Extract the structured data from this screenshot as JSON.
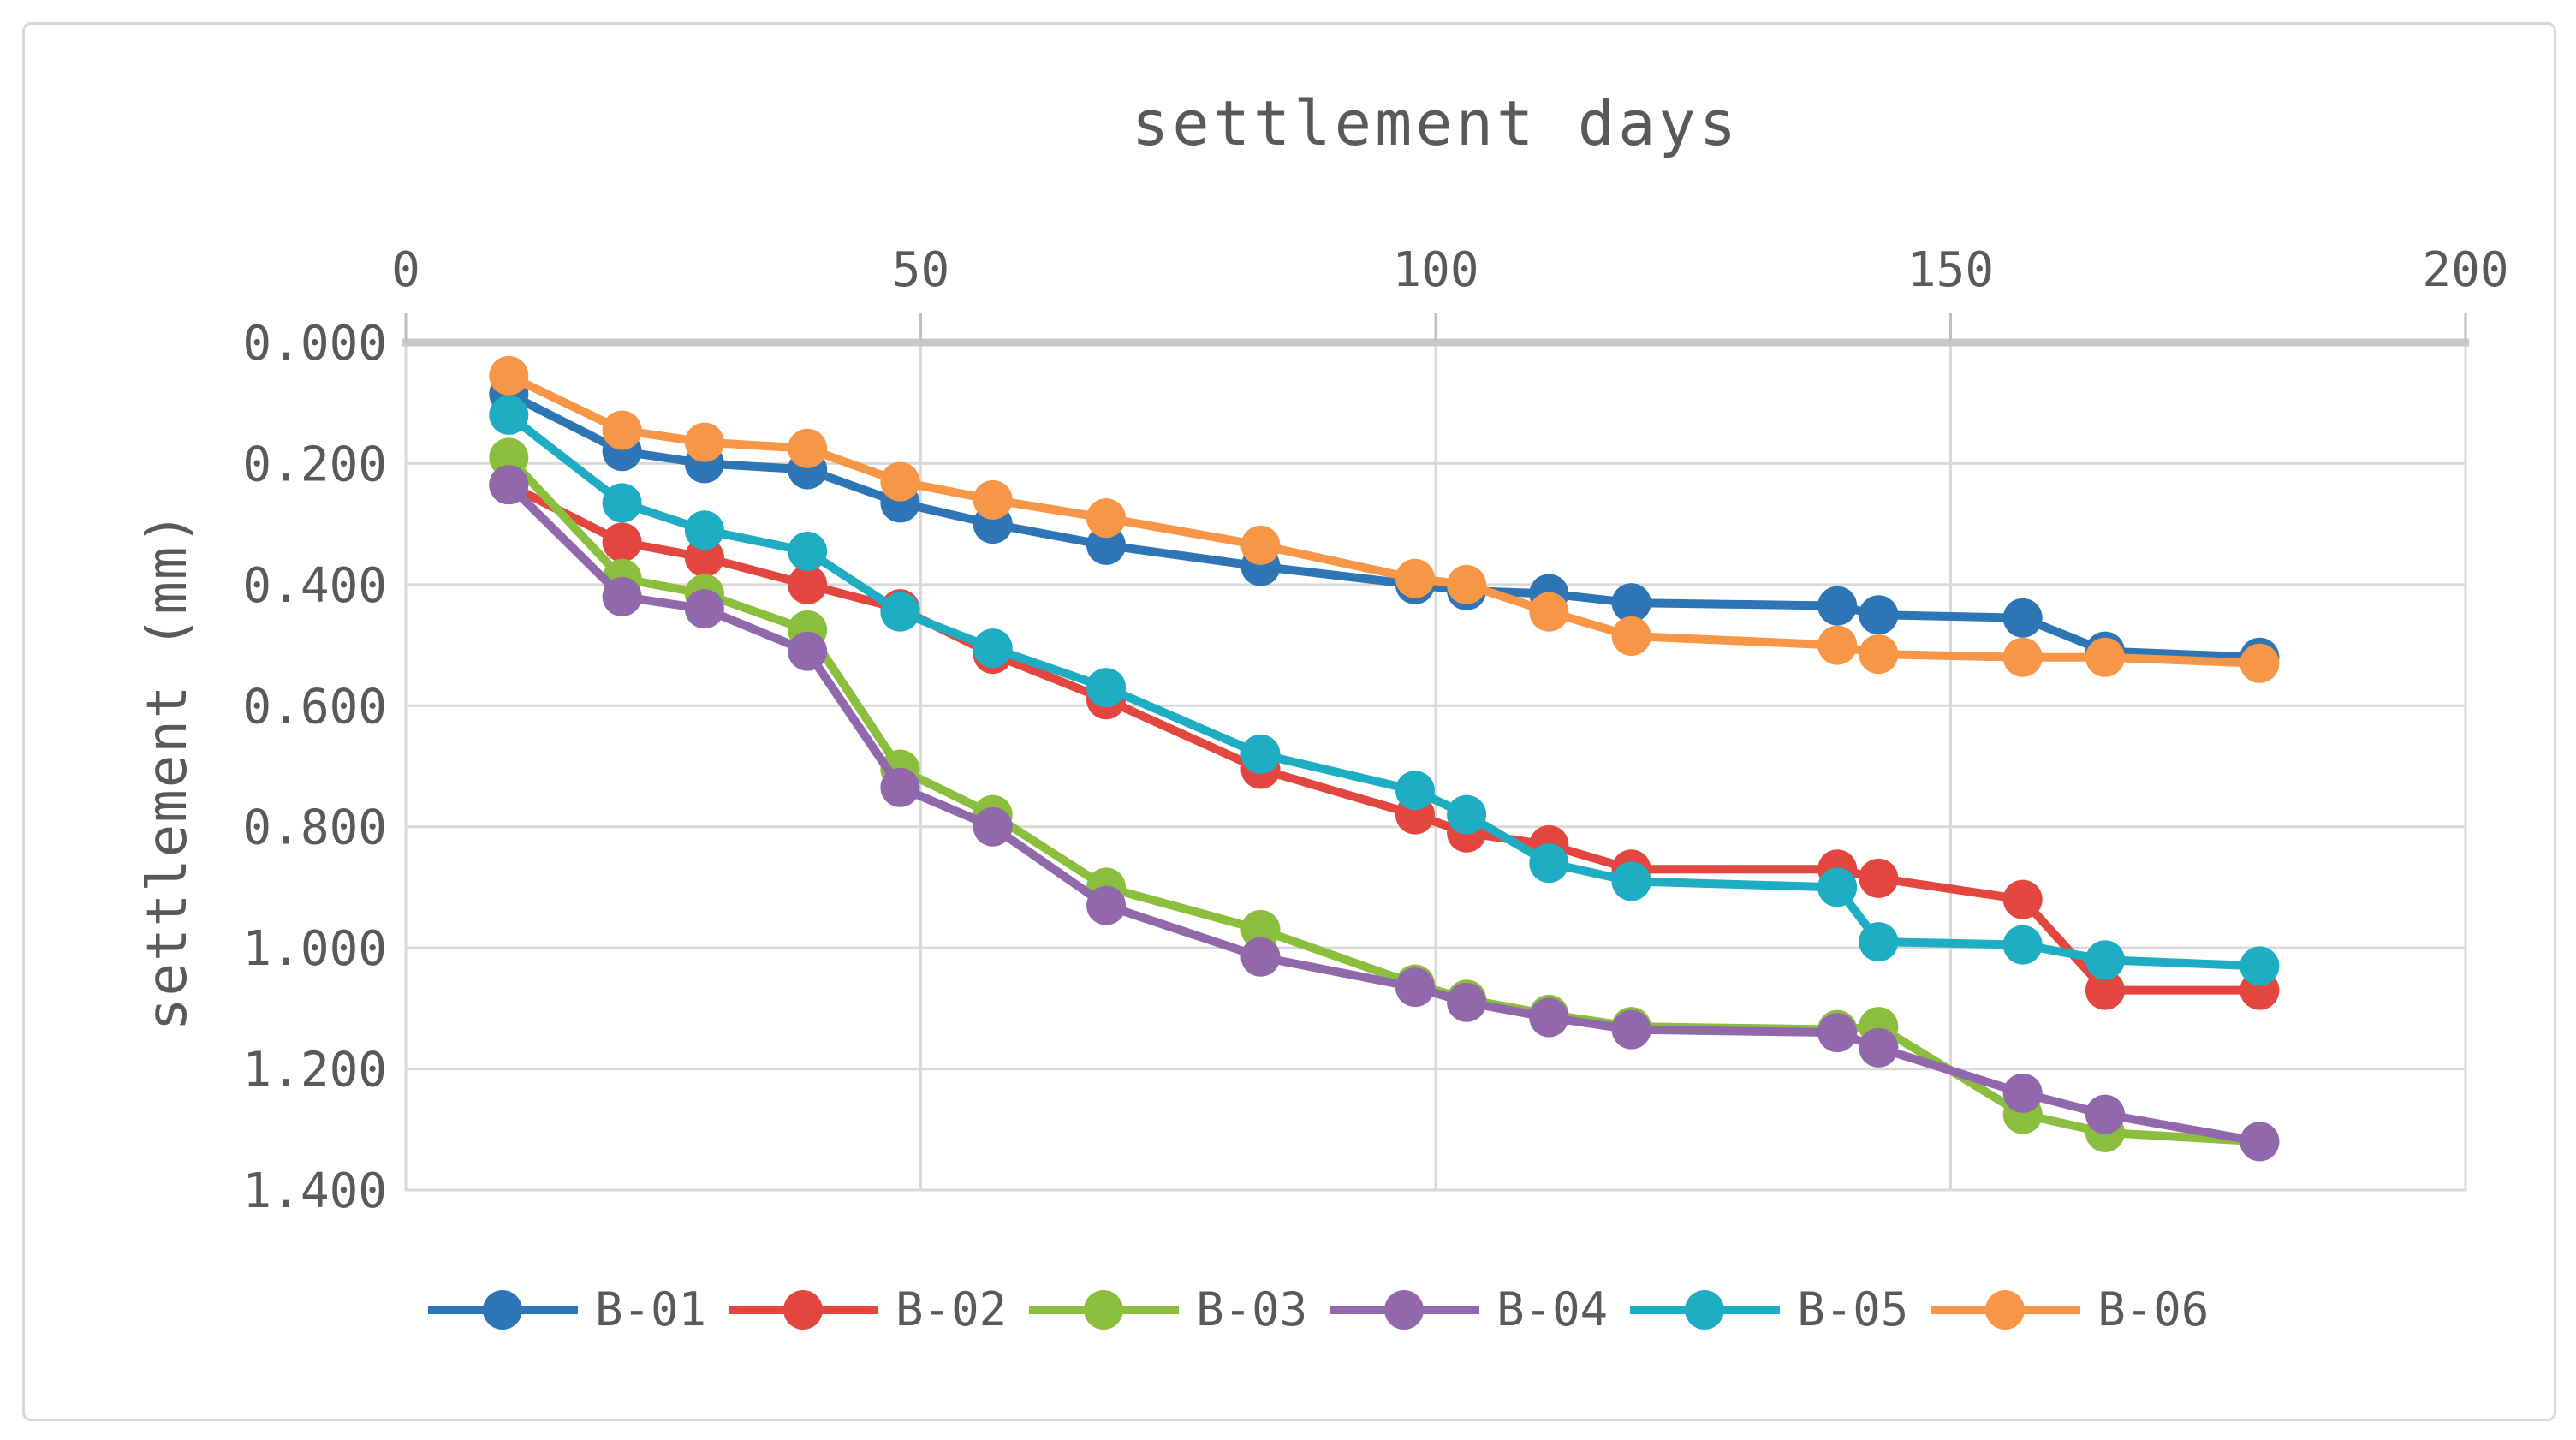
{
  "figure_type": "excel-style line chart (settlement monitoring)",
  "colors": {
    "text": "#595959",
    "gridline": "#d9d9d9",
    "plot_top_border": "#c8c8c8",
    "tick": "#bfbfbf",
    "background": "#ffffff"
  },
  "chart_data": {
    "type": "line",
    "title": "settlement days",
    "xlabel": "settlement days",
    "ylabel": "settlement (mm)",
    "xlim": [
      0,
      200
    ],
    "ylim": [
      0,
      1.4
    ],
    "y_inverted": true,
    "grid": true,
    "legend_position": "bottom",
    "x_ticks": {
      "values": [
        0,
        50,
        100,
        150,
        200
      ],
      "labels": [
        "0",
        "50",
        "100",
        "150",
        "200"
      ]
    },
    "y_ticks": {
      "values": [
        0,
        0.2,
        0.4,
        0.6,
        0.8,
        1.0,
        1.2,
        1.4
      ],
      "labels": [
        "0.000",
        "0.200",
        "0.400",
        "0.600",
        "0.800",
        "1.000",
        "1.200",
        "1.400"
      ]
    },
    "x": [
      10,
      21,
      29,
      39,
      48,
      57,
      68,
      83,
      98,
      103,
      111,
      119,
      139,
      143,
      157,
      165,
      180
    ],
    "series": [
      {
        "name": "B-01",
        "color": "#2e75b6",
        "values": [
          0.085,
          0.18,
          0.2,
          0.21,
          0.265,
          0.3,
          0.335,
          0.37,
          0.4,
          0.41,
          0.415,
          0.43,
          0.435,
          0.45,
          0.455,
          0.51,
          0.52
        ]
      },
      {
        "name": "B-02",
        "color": "#e2463f",
        "values": [
          0.235,
          0.33,
          0.355,
          0.4,
          0.44,
          0.515,
          0.59,
          0.705,
          0.78,
          0.81,
          0.83,
          0.87,
          0.87,
          0.885,
          0.92,
          1.07,
          1.07
        ]
      },
      {
        "name": "B-03",
        "color": "#8bbe3d",
        "values": [
          0.19,
          0.39,
          0.415,
          0.475,
          0.705,
          0.78,
          0.9,
          0.97,
          1.06,
          1.085,
          1.11,
          1.13,
          1.135,
          1.13,
          1.275,
          1.305,
          1.32
        ]
      },
      {
        "name": "B-04",
        "color": "#9268ac",
        "values": [
          0.235,
          0.42,
          0.44,
          0.51,
          0.735,
          0.8,
          0.93,
          1.015,
          1.065,
          1.09,
          1.115,
          1.135,
          1.14,
          1.165,
          1.24,
          1.275,
          1.32
        ]
      },
      {
        "name": "B-05",
        "color": "#1fadc4",
        "values": [
          0.12,
          0.265,
          0.31,
          0.345,
          0.445,
          0.505,
          0.57,
          0.68,
          0.74,
          0.78,
          0.86,
          0.89,
          0.9,
          0.99,
          0.995,
          1.02,
          1.03
        ]
      },
      {
        "name": "B-06",
        "color": "#f79646",
        "values": [
          0.055,
          0.145,
          0.165,
          0.175,
          0.23,
          0.26,
          0.29,
          0.335,
          0.39,
          0.4,
          0.445,
          0.485,
          0.5,
          0.515,
          0.52,
          0.52,
          0.53
        ]
      }
    ]
  }
}
